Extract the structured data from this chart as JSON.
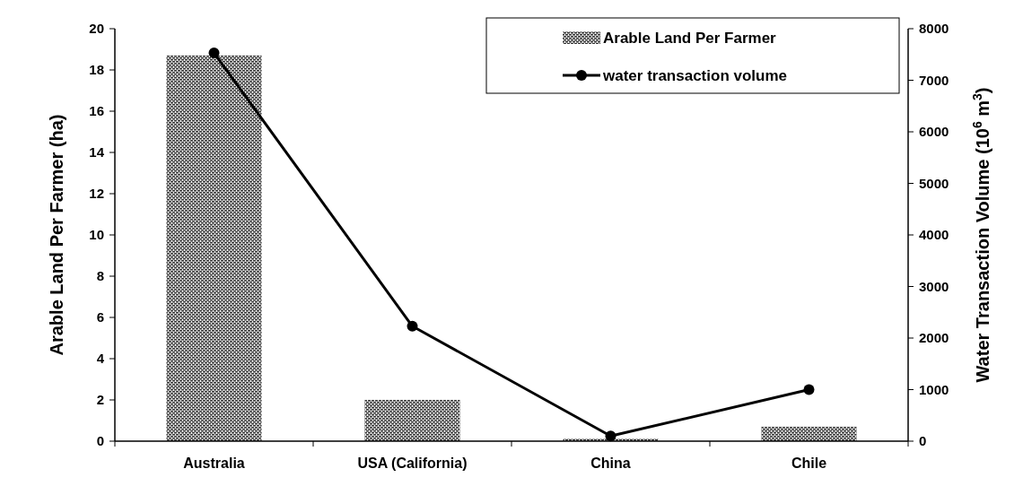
{
  "chart_data": {
    "type": "bar",
    "categories": [
      "Australia",
      "USA (California)",
      "China",
      "Chile"
    ],
    "ylabel": "Arable Land Per Farmer (ha)",
    "y2label": "Water Transaction Volume (10$^{6}$ m$^{3}$)",
    "series": [
      {
        "name": "Arable Land Per Farmer",
        "color": "#333333",
        "values": [
          18.7,
          2.0,
          0.12,
          0.7
        ]
      },
      {
        "name": "water transaction volume",
        "type": "line",
        "axis": "y2",
        "color": "#000000",
        "marker": "circle",
        "values": [
          7530,
          2230,
          100,
          1000
        ]
      }
    ],
    "ylim": [
      0,
      20
    ],
    "yticks": [
      0,
      2,
      4,
      6,
      8,
      10,
      12,
      14,
      16,
      18,
      20
    ],
    "y2lim": [
      0,
      8000
    ],
    "y2ticks": [
      0,
      1000,
      2000,
      3000,
      4000,
      5000,
      6000,
      7000,
      8000
    ],
    "legend": "top right"
  }
}
